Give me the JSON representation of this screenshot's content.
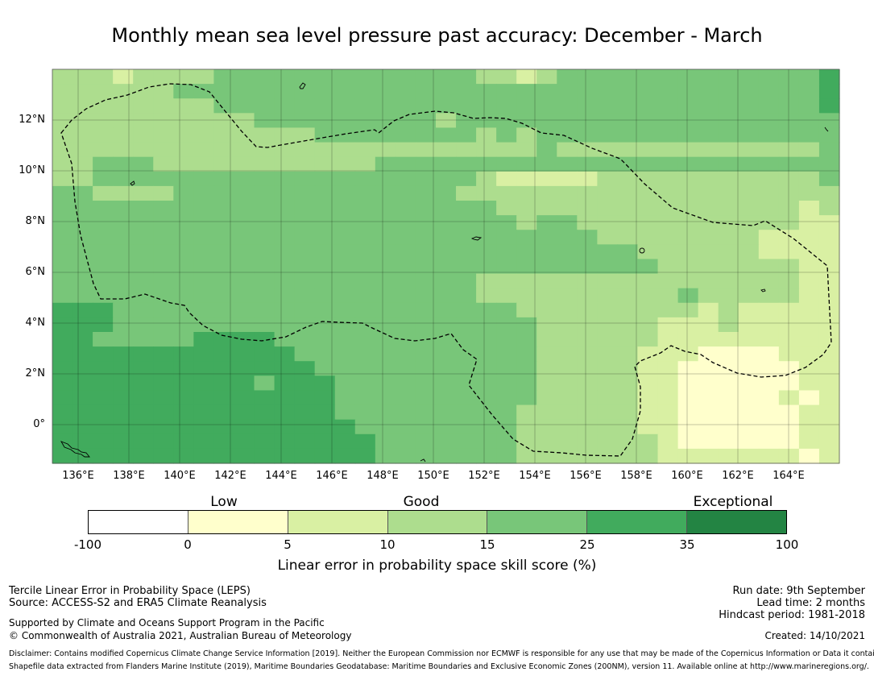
{
  "title": "Monthly mean sea level pressure past accuracy: December - March",
  "colors": {
    "c0": "#ffffff",
    "c1": "#ffffcc",
    "c2": "#d9f0a3",
    "c3": "#addd8e",
    "c4": "#78c679",
    "c5": "#41ab5d",
    "c6": "#238443"
  },
  "map": {
    "lat_labels": [
      "12°N",
      "10°N",
      "8°N",
      "6°N",
      "4°N",
      "2°N",
      "0°"
    ],
    "lon_labels": [
      "136°E",
      "138°E",
      "140°E",
      "142°E",
      "144°E",
      "146°E",
      "148°E",
      "150°E",
      "152°E",
      "154°E",
      "156°E",
      "158°E",
      "160°E",
      "162°E",
      "164°E"
    ],
    "grid_levels": [
      [
        3,
        3,
        3,
        2,
        3,
        3,
        3,
        3,
        4,
        4,
        4,
        4,
        4,
        4,
        4,
        4,
        4,
        4,
        4,
        4,
        4,
        3,
        3,
        2,
        3,
        4,
        4,
        4,
        4,
        4,
        4,
        4,
        4,
        4,
        4,
        4,
        4,
        4,
        5
      ],
      [
        3,
        3,
        3,
        3,
        3,
        3,
        4,
        4,
        4,
        4,
        4,
        4,
        4,
        4,
        4,
        4,
        4,
        4,
        4,
        4,
        4,
        4,
        4,
        4,
        4,
        4,
        4,
        4,
        4,
        4,
        4,
        4,
        4,
        4,
        4,
        4,
        4,
        4,
        5
      ],
      [
        3,
        3,
        3,
        3,
        3,
        3,
        3,
        3,
        4,
        4,
        4,
        4,
        4,
        4,
        4,
        4,
        4,
        4,
        4,
        4,
        4,
        4,
        4,
        4,
        4,
        4,
        4,
        4,
        4,
        4,
        4,
        4,
        4,
        4,
        4,
        4,
        4,
        4,
        5
      ],
      [
        3,
        3,
        3,
        3,
        3,
        3,
        3,
        3,
        3,
        3,
        4,
        4,
        4,
        4,
        4,
        4,
        4,
        4,
        4,
        3,
        4,
        4,
        4,
        4,
        4,
        4,
        4,
        4,
        4,
        4,
        4,
        4,
        4,
        4,
        4,
        4,
        4,
        4,
        4
      ],
      [
        3,
        3,
        3,
        3,
        3,
        3,
        3,
        3,
        3,
        3,
        3,
        3,
        3,
        4,
        4,
        4,
        4,
        4,
        4,
        4,
        4,
        3,
        4,
        3,
        4,
        4,
        4,
        4,
        4,
        4,
        4,
        4,
        4,
        4,
        4,
        4,
        4,
        4,
        4
      ],
      [
        3,
        3,
        3,
        3,
        3,
        3,
        3,
        3,
        3,
        3,
        3,
        3,
        3,
        3,
        3,
        3,
        3,
        3,
        3,
        3,
        3,
        3,
        3,
        3,
        4,
        3,
        3,
        3,
        3,
        3,
        3,
        3,
        3,
        3,
        3,
        3,
        3,
        3,
        4
      ],
      [
        3,
        3,
        4,
        4,
        4,
        3,
        3,
        3,
        3,
        3,
        3,
        3,
        3,
        3,
        3,
        3,
        4,
        4,
        4,
        4,
        4,
        4,
        4,
        4,
        4,
        4,
        4,
        4,
        4,
        4,
        4,
        4,
        4,
        4,
        4,
        4,
        4,
        4,
        4
      ],
      [
        3,
        3,
        4,
        4,
        4,
        4,
        4,
        4,
        4,
        4,
        4,
        4,
        4,
        4,
        4,
        4,
        4,
        4,
        4,
        4,
        4,
        3,
        2,
        2,
        2,
        2,
        2,
        3,
        3,
        3,
        3,
        3,
        3,
        3,
        3,
        3,
        3,
        3,
        4
      ],
      [
        4,
        4,
        3,
        3,
        3,
        3,
        4,
        4,
        4,
        4,
        4,
        4,
        4,
        4,
        4,
        4,
        4,
        4,
        4,
        4,
        3,
        3,
        3,
        3,
        3,
        3,
        3,
        3,
        3,
        3,
        3,
        3,
        3,
        3,
        3,
        3,
        3,
        3,
        3
      ],
      [
        4,
        4,
        4,
        4,
        4,
        4,
        4,
        4,
        4,
        4,
        4,
        4,
        4,
        4,
        4,
        4,
        4,
        4,
        4,
        4,
        4,
        4,
        3,
        3,
        3,
        3,
        3,
        3,
        3,
        3,
        3,
        3,
        3,
        3,
        3,
        3,
        3,
        2,
        3
      ],
      [
        4,
        4,
        4,
        4,
        4,
        4,
        4,
        4,
        4,
        4,
        4,
        4,
        4,
        4,
        4,
        4,
        4,
        4,
        4,
        4,
        4,
        4,
        4,
        3,
        4,
        4,
        3,
        3,
        3,
        3,
        3,
        3,
        3,
        3,
        3,
        3,
        3,
        2,
        2
      ],
      [
        4,
        4,
        4,
        4,
        4,
        4,
        4,
        4,
        4,
        4,
        4,
        4,
        4,
        4,
        4,
        4,
        4,
        4,
        4,
        4,
        4,
        4,
        4,
        4,
        4,
        4,
        4,
        3,
        3,
        3,
        3,
        3,
        3,
        3,
        3,
        2,
        2,
        2,
        2
      ],
      [
        4,
        4,
        4,
        4,
        4,
        4,
        4,
        4,
        4,
        4,
        4,
        4,
        4,
        4,
        4,
        4,
        4,
        4,
        4,
        4,
        4,
        4,
        4,
        4,
        4,
        4,
        4,
        4,
        4,
        3,
        3,
        3,
        3,
        3,
        3,
        2,
        2,
        2,
        2
      ],
      [
        4,
        4,
        4,
        4,
        4,
        4,
        4,
        4,
        4,
        4,
        4,
        4,
        4,
        4,
        4,
        4,
        4,
        4,
        4,
        4,
        4,
        4,
        4,
        4,
        4,
        4,
        4,
        4,
        4,
        4,
        3,
        3,
        3,
        3,
        3,
        3,
        3,
        2,
        2
      ],
      [
        4,
        4,
        4,
        4,
        4,
        4,
        4,
        4,
        4,
        4,
        4,
        4,
        4,
        4,
        4,
        4,
        4,
        4,
        4,
        4,
        4,
        3,
        3,
        3,
        3,
        3,
        3,
        3,
        3,
        3,
        3,
        3,
        3,
        3,
        3,
        3,
        3,
        2,
        2
      ],
      [
        4,
        4,
        4,
        4,
        4,
        4,
        4,
        4,
        4,
        4,
        4,
        4,
        4,
        4,
        4,
        4,
        4,
        4,
        4,
        4,
        4,
        3,
        3,
        3,
        3,
        3,
        3,
        3,
        3,
        3,
        3,
        4,
        3,
        3,
        3,
        3,
        3,
        2,
        2
      ],
      [
        5,
        5,
        5,
        4,
        4,
        4,
        4,
        4,
        4,
        4,
        4,
        4,
        4,
        4,
        4,
        4,
        4,
        4,
        4,
        4,
        4,
        4,
        4,
        3,
        3,
        3,
        3,
        3,
        3,
        3,
        3,
        3,
        2,
        3,
        2,
        2,
        2,
        2,
        2
      ],
      [
        5,
        5,
        5,
        4,
        4,
        4,
        4,
        4,
        4,
        4,
        4,
        4,
        4,
        4,
        4,
        4,
        4,
        4,
        4,
        4,
        4,
        4,
        4,
        4,
        3,
        3,
        3,
        3,
        3,
        3,
        2,
        2,
        2,
        3,
        2,
        2,
        2,
        2,
        2
      ],
      [
        5,
        5,
        4,
        4,
        4,
        4,
        4,
        5,
        5,
        5,
        5,
        4,
        4,
        4,
        4,
        4,
        4,
        4,
        4,
        4,
        4,
        4,
        4,
        4,
        3,
        3,
        3,
        3,
        3,
        3,
        2,
        2,
        2,
        2,
        2,
        2,
        2,
        2,
        2
      ],
      [
        5,
        5,
        5,
        5,
        5,
        5,
        5,
        5,
        5,
        5,
        5,
        5,
        4,
        4,
        4,
        4,
        4,
        4,
        4,
        4,
        4,
        4,
        4,
        4,
        3,
        3,
        3,
        3,
        3,
        2,
        2,
        2,
        1,
        1,
        1,
        1,
        2,
        2,
        2
      ],
      [
        5,
        5,
        5,
        5,
        5,
        5,
        5,
        5,
        5,
        5,
        5,
        5,
        5,
        4,
        4,
        4,
        4,
        4,
        4,
        4,
        4,
        4,
        4,
        4,
        3,
        3,
        3,
        3,
        3,
        2,
        2,
        1,
        1,
        1,
        1,
        1,
        1,
        2,
        2
      ],
      [
        5,
        5,
        5,
        5,
        5,
        5,
        5,
        5,
        5,
        5,
        4,
        5,
        5,
        5,
        4,
        4,
        4,
        4,
        4,
        4,
        4,
        4,
        4,
        4,
        3,
        3,
        3,
        3,
        3,
        2,
        2,
        1,
        1,
        1,
        1,
        1,
        1,
        2,
        2
      ],
      [
        5,
        5,
        5,
        5,
        5,
        5,
        5,
        5,
        5,
        5,
        5,
        5,
        5,
        5,
        4,
        4,
        4,
        4,
        4,
        4,
        4,
        4,
        4,
        4,
        3,
        3,
        3,
        3,
        3,
        2,
        2,
        1,
        1,
        1,
        1,
        1,
        2,
        1,
        2
      ],
      [
        5,
        5,
        5,
        5,
        5,
        5,
        5,
        5,
        5,
        5,
        5,
        5,
        5,
        5,
        4,
        4,
        4,
        4,
        4,
        4,
        4,
        4,
        4,
        3,
        3,
        3,
        3,
        3,
        3,
        2,
        2,
        1,
        1,
        1,
        1,
        1,
        1,
        2,
        2
      ],
      [
        5,
        5,
        5,
        5,
        5,
        5,
        5,
        5,
        5,
        5,
        5,
        5,
        5,
        5,
        5,
        4,
        4,
        4,
        4,
        4,
        4,
        4,
        4,
        3,
        3,
        3,
        3,
        3,
        3,
        2,
        2,
        1,
        1,
        1,
        1,
        1,
        1,
        2,
        2
      ],
      [
        5,
        5,
        5,
        5,
        5,
        5,
        5,
        5,
        5,
        5,
        5,
        5,
        5,
        5,
        5,
        5,
        4,
        4,
        4,
        4,
        4,
        4,
        4,
        3,
        3,
        3,
        3,
        3,
        3,
        3,
        2,
        1,
        1,
        1,
        1,
        1,
        1,
        2,
        2
      ],
      [
        5,
        5,
        5,
        5,
        5,
        5,
        5,
        5,
        5,
        5,
        5,
        5,
        5,
        5,
        5,
        5,
        4,
        4,
        4,
        4,
        4,
        4,
        4,
        3,
        3,
        3,
        3,
        3,
        3,
        3,
        2,
        2,
        2,
        2,
        2,
        2,
        2,
        1,
        2
      ]
    ]
  },
  "colorbar": {
    "categories": [
      "Low",
      "Good",
      "Exceptional"
    ],
    "ticks": [
      "-100",
      "0",
      "5",
      "10",
      "15",
      "25",
      "35",
      "100"
    ],
    "title": "Linear error in probability space skill score (%)"
  },
  "footer": {
    "line1": "Tercile Linear Error in Probability Space (LEPS)",
    "line2": "Source: ACCESS-S2 and ERA5 Climate Reanalysis",
    "line3": "Supported by Climate and Oceans Support Program in the Pacific",
    "line4": "© Commonwealth of Australia 2021, Australian Bureau of Meteorology",
    "run_date": "Run date: 9th September",
    "lead_time": "Lead time: 2 months",
    "hindcast": "Hindcast period: 1981-2018",
    "created": "Created: 14/10/2021",
    "disclaimer1": "Disclaimer: Contains modified Copernicus Climate Change Service Information [2019]. Neither the European Commission nor ECMWF is responsible for any use that may be made of the Copernicus Information or Data it contains.",
    "disclaimer2": "Shapefile data extracted from Flanders Marine Institute (2019), Maritime Boundaries Geodatabase: Maritime Boundaries and Exclusive Economic Zones (200NM), version 11. Available online at http://www.marineregions.org/."
  }
}
